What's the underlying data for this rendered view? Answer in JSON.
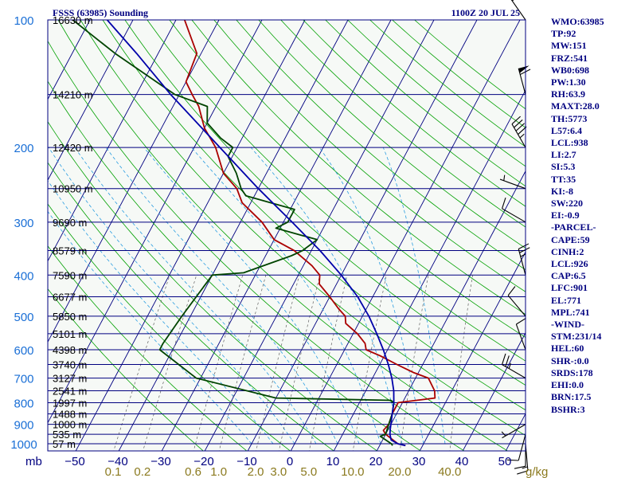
{
  "header": {
    "title": "FSSS (63985) Sounding",
    "datetime": "1100Z 20 JUL 25"
  },
  "colors": {
    "background": "#ffffff",
    "plot_fill": "#f6f9f6",
    "isobars": "#000080",
    "isotherms": "#000080",
    "dry_adiabats": "#00a000",
    "moist_adiabats": "#2a9de0",
    "mixing_ratio": "#606060",
    "temperature": "#aa0000",
    "dewpoint": "#004400",
    "parcel": "#0000aa",
    "pressure_labels": "#1a6fd6",
    "temperature_labels": "#000080",
    "mixing_ratio_labels": "#8b7a1f",
    "side_text": "#000080"
  },
  "chart_data": {
    "type": "line",
    "diagram": "skew-t log-p",
    "pressure_unit": "mb",
    "mixing_ratio_unit": "g/kg",
    "pressure_levels": [
      100,
      200,
      300,
      400,
      500,
      600,
      700,
      800,
      900,
      1000
    ],
    "temperature_ticks": [
      -50,
      -40,
      -30,
      -20,
      -10,
      0,
      10,
      20,
      30,
      40,
      50
    ],
    "mixing_ratio_ticks": [
      "0.1",
      "0.2",
      "0.6",
      "1.0",
      "2.0",
      "3.0",
      "5.0",
      "10.0",
      "20.0",
      "40.0"
    ],
    "xlim": [
      -50,
      50
    ],
    "ylim": [
      1050,
      100
    ],
    "height_labels": [
      {
        "p": 100,
        "text": "16630 m"
      },
      {
        "p": 150,
        "text": "14210 m"
      },
      {
        "p": 200,
        "text": "12420 m"
      },
      {
        "p": 250,
        "text": "10950 m"
      },
      {
        "p": 300,
        "text": "9690 m"
      },
      {
        "p": 350,
        "text": "8579 m"
      },
      {
        "p": 400,
        "text": "7590 m"
      },
      {
        "p": 450,
        "text": "6677 m"
      },
      {
        "p": 500,
        "text": "5850 m"
      },
      {
        "p": 550,
        "text": "5101 m"
      },
      {
        "p": 600,
        "text": "4398 m"
      },
      {
        "p": 650,
        "text": "3740 m"
      },
      {
        "p": 700,
        "text": "3127 m"
      },
      {
        "p": 750,
        "text": "2541 m"
      },
      {
        "p": 800,
        "text": "1997 m"
      },
      {
        "p": 850,
        "text": "1488 m"
      },
      {
        "p": 900,
        "text": "1000 m"
      },
      {
        "p": 950,
        "text": "535 m"
      },
      {
        "p": 1000,
        "text": "57 m"
      }
    ],
    "series": [
      {
        "role": "temperature",
        "points": [
          [
            1010,
            26
          ],
          [
            1000,
            24
          ],
          [
            950,
            20
          ],
          [
            930,
            19
          ],
          [
            900,
            19.5
          ],
          [
            850,
            19
          ],
          [
            800,
            19
          ],
          [
            790,
            23
          ],
          [
            780,
            27
          ],
          [
            750,
            26
          ],
          [
            700,
            23
          ],
          [
            680,
            19
          ],
          [
            650,
            14
          ],
          [
            620,
            9
          ],
          [
            600,
            5
          ],
          [
            580,
            4
          ],
          [
            550,
            1
          ],
          [
            520,
            -3
          ],
          [
            500,
            -4
          ],
          [
            480,
            -6.5
          ],
          [
            450,
            -10
          ],
          [
            420,
            -14
          ],
          [
            400,
            -15
          ],
          [
            380,
            -18
          ],
          [
            350,
            -24
          ],
          [
            330,
            -30
          ],
          [
            300,
            -35
          ],
          [
            270,
            -42
          ],
          [
            250,
            -45
          ],
          [
            230,
            -50
          ],
          [
            200,
            -55
          ],
          [
            180,
            -60
          ],
          [
            160,
            -64
          ],
          [
            150,
            -67
          ],
          [
            140,
            -70
          ],
          [
            120,
            -71
          ],
          [
            100,
            -78
          ]
        ]
      },
      {
        "role": "dewpoint",
        "points": [
          [
            1010,
            23
          ],
          [
            1000,
            22.5
          ],
          [
            960,
            19
          ],
          [
            950,
            20
          ],
          [
            900,
            19.5
          ],
          [
            850,
            19
          ],
          [
            800,
            18
          ],
          [
            790,
            17
          ],
          [
            780,
            -10
          ],
          [
            700,
            -31
          ],
          [
            600,
            -43
          ],
          [
            580,
            -43
          ],
          [
            500,
            -42
          ],
          [
            400,
            -40
          ],
          [
            395,
            -33
          ],
          [
            360,
            -24
          ],
          [
            350,
            -22
          ],
          [
            330,
            -20
          ],
          [
            310,
            -31
          ],
          [
            300,
            -29
          ],
          [
            280,
            -29
          ],
          [
            260,
            -42
          ],
          [
            250,
            -44
          ],
          [
            230,
            -47
          ],
          [
            210,
            -51
          ],
          [
            200,
            -51
          ],
          [
            190,
            -55
          ],
          [
            175,
            -60
          ],
          [
            160,
            -62
          ],
          [
            150,
            -71
          ],
          [
            120,
            -90
          ],
          [
            100,
            -104
          ]
        ]
      },
      {
        "role": "parcel",
        "points": [
          [
            1010,
            26
          ],
          [
            1000,
            24
          ],
          [
            980,
            22
          ],
          [
            950,
            21
          ],
          [
            926,
            20.5
          ],
          [
            900,
            20
          ],
          [
            850,
            19
          ],
          [
            800,
            18
          ],
          [
            750,
            16.5
          ],
          [
            700,
            14.5
          ],
          [
            650,
            12
          ],
          [
            600,
            9
          ],
          [
            550,
            5.5
          ],
          [
            500,
            1.5
          ],
          [
            450,
            -3.5
          ],
          [
            400,
            -10
          ],
          [
            350,
            -18
          ],
          [
            300,
            -28
          ],
          [
            250,
            -40
          ],
          [
            200,
            -54
          ],
          [
            150,
            -72
          ],
          [
            120,
            -85
          ],
          [
            100,
            -96
          ]
        ]
      }
    ],
    "wind_barbs": [
      {
        "p": 1000,
        "dir": 175,
        "kt": 15
      },
      {
        "p": 975,
        "dir": 180,
        "kt": 10
      },
      {
        "p": 950,
        "dir": 195,
        "kt": 10
      },
      {
        "p": 900,
        "dir": 240,
        "kt": 5
      },
      {
        "p": 700,
        "dir": 300,
        "kt": 25
      },
      {
        "p": 600,
        "dir": 340,
        "kt": 10
      },
      {
        "p": 500,
        "dir": 320,
        "kt": 10
      },
      {
        "p": 400,
        "dir": 345,
        "kt": 25
      },
      {
        "p": 300,
        "dir": 300,
        "kt": 10
      },
      {
        "p": 250,
        "dir": 290,
        "kt": 5
      },
      {
        "p": 200,
        "dir": 330,
        "kt": 45
      },
      {
        "p": 150,
        "dir": 345,
        "kt": 60
      },
      {
        "p": 100,
        "dir": 325,
        "kt": 20
      }
    ]
  },
  "side_panel": {
    "items": [
      "WMO:63985",
      "TP:92",
      "MW:151",
      "FRZ:541",
      "WB0:698",
      "PW:1.30",
      "RH:63.9",
      "MAXT:28.0",
      "TH:5773",
      "L57:6.4",
      "LCL:938",
      "LI:2.7",
      "SI:5.3",
      "TT:35",
      "KI:-8",
      "SW:220",
      "EI:-0.9",
      "-PARCEL-",
      "CAPE:59",
      "CINH:2",
      "LCL:926",
      "CAP:6.5",
      "LFC:901",
      "EL:771",
      "MPL:741",
      "-WIND-",
      "STM:231/14",
      "HEL:60",
      "SHR-:0.0",
      "SRDS:178",
      "EHI:0.0",
      "BRN:17.5",
      "BSHR:3"
    ]
  }
}
